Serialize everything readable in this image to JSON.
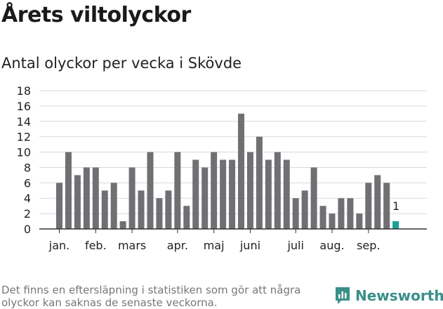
{
  "title": "Årets viltolyckor",
  "subtitle": "Antal olyckor per vecka i Skövde",
  "footnote": "Det finns en eftersläpning i statistiken som gör att några olyckor kan saknas de senaste veckorna.",
  "brand": {
    "name": "Newsworthy",
    "icon": "newsworthy-logo-icon",
    "color": "#3a8f8a"
  },
  "chart_data": {
    "type": "bar",
    "xlabel": "",
    "ylabel": "",
    "ylim": [
      0,
      18
    ],
    "yticks": [
      0,
      2,
      4,
      6,
      8,
      10,
      12,
      14,
      16,
      18
    ],
    "grid": true,
    "month_labels": [
      {
        "label": "jan.",
        "week": 1
      },
      {
        "label": "feb.",
        "week": 5
      },
      {
        "label": "mars",
        "week": 9
      },
      {
        "label": "apr.",
        "week": 14
      },
      {
        "label": "maj",
        "week": 18
      },
      {
        "label": "juni",
        "week": 22
      },
      {
        "label": "juli",
        "week": 27
      },
      {
        "label": "aug.",
        "week": 31
      },
      {
        "label": "sep.",
        "week": 35
      }
    ],
    "weeks": [
      1,
      2,
      3,
      4,
      5,
      6,
      7,
      8,
      9,
      10,
      11,
      12,
      13,
      14,
      15,
      16,
      17,
      18,
      19,
      20,
      21,
      22,
      23,
      24,
      25,
      26,
      27,
      28,
      29,
      30,
      31,
      32,
      33,
      34,
      35,
      36,
      37,
      38
    ],
    "values": [
      6,
      10,
      7,
      8,
      8,
      5,
      6,
      1,
      8,
      5,
      10,
      4,
      5,
      10,
      3,
      9,
      8,
      10,
      9,
      9,
      15,
      10,
      12,
      9,
      10,
      9,
      4,
      5,
      8,
      3,
      2,
      4,
      4,
      2,
      6,
      7,
      6,
      1
    ],
    "highlight_last": {
      "value_label": "1"
    },
    "colors": {
      "bar": "#707074",
      "highlight": "#1a9e96",
      "grid": "#d9d9d9",
      "axis": "#333333"
    }
  }
}
